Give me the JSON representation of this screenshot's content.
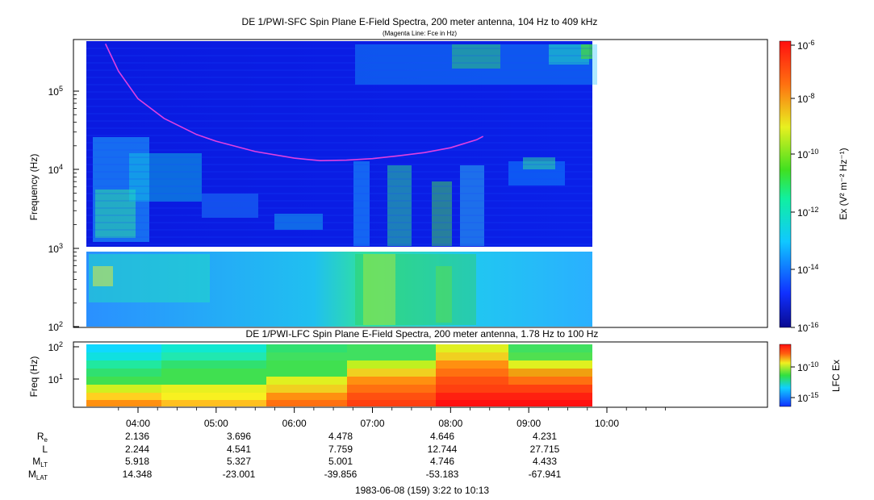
{
  "sfc_panel": {
    "title": "DE 1/PWI-SFC  Spin Plane E-Field Spectra, 200 meter antenna, 104 Hz to 409 kHz",
    "subtitle": "(Magenta Line: Fce in Hz)",
    "ylabel": "Frequency (Hz)",
    "colorbar_label": "Ex (V² m⁻² Hz⁻¹)",
    "colorbar_ticks": [
      {
        "base": "10",
        "exp": "-6"
      },
      {
        "base": "10",
        "exp": "-8"
      },
      {
        "base": "10",
        "exp": "-10"
      },
      {
        "base": "10",
        "exp": "-12"
      },
      {
        "base": "10",
        "exp": "-14"
      },
      {
        "base": "10",
        "exp": "-16"
      }
    ],
    "yticks": [
      {
        "base": "10",
        "exp": "5"
      },
      {
        "base": "10",
        "exp": "4"
      },
      {
        "base": "10",
        "exp": "3"
      },
      {
        "base": "10",
        "exp": "2"
      }
    ]
  },
  "lfc_panel": {
    "title": "DE 1/PWI-LFC  Spin Plane E-Field Spectra, 200 meter antenna, 1.78 Hz to 100 Hz",
    "ylabel": "Freq (Hz)",
    "colorbar_label": "LFC Ex",
    "colorbar_ticks": [
      {
        "base": "10",
        "exp": "-10"
      },
      {
        "base": "10",
        "exp": "-15"
      }
    ],
    "yticks": [
      {
        "base": "10",
        "exp": "2"
      },
      {
        "base": "10",
        "exp": "1"
      }
    ]
  },
  "time_axis": {
    "ticks": [
      "04:00",
      "05:00",
      "06:00",
      "07:00",
      "08:00",
      "09:00",
      "10:00"
    ]
  },
  "ephemeris": {
    "rows": [
      {
        "label": "R",
        "sub": "e",
        "values": [
          "2.136",
          "3.696",
          "4.478",
          "4.646",
          "4.231"
        ]
      },
      {
        "label": "L",
        "sub": "",
        "values": [
          "2.244",
          "4.541",
          "7.759",
          "12.744",
          "27.715"
        ]
      },
      {
        "label": "M",
        "sub": "LT",
        "values": [
          "5.918",
          "5.327",
          "5.001",
          "4.746",
          "4.433"
        ]
      },
      {
        "label": "M",
        "sub": "LAT",
        "values": [
          "14.348",
          "-23.001",
          "-39.856",
          "-53.183",
          "-67.941"
        ]
      }
    ]
  },
  "footer": "1983-06-08 (159) 3:22 to 10:13",
  "colors": {
    "fce_line": "#e040e0",
    "background_spectrum": "#0a1ae0"
  },
  "chart_data": [
    {
      "type": "heatmap",
      "title": "DE 1/PWI-SFC  Spin Plane E-Field Spectra, 200 meter antenna, 104 Hz to 409 kHz",
      "ylabel": "Frequency (Hz)",
      "yscale": "log",
      "ylim": [
        100,
        409000
      ],
      "xlim": [
        "03:22",
        "10:13"
      ],
      "data_extent": [
        "03:22",
        "08:27"
      ],
      "colorbar": {
        "label": "Ex (V^2 m^-2 Hz^-1)",
        "scale": "log",
        "range": [
          1e-16,
          1e-06
        ]
      },
      "series": [
        {
          "name": "Fce",
          "x": [
            "03:35",
            "03:45",
            "04:00",
            "04:20",
            "04:45",
            "05:00",
            "05:30",
            "06:00",
            "06:20",
            "06:40",
            "07:00",
            "07:20",
            "07:40",
            "08:00",
            "08:20",
            "08:25"
          ],
          "y": [
            400000,
            180000,
            80000,
            45000,
            28000,
            23000,
            17000,
            14000,
            13000,
            13200,
            13800,
            15000,
            16500,
            19000,
            24000,
            26500
          ]
        }
      ]
    },
    {
      "type": "heatmap",
      "title": "DE 1/PWI-LFC  Spin Plane E-Field Spectra, 200 meter antenna, 1.78 Hz to 100 Hz",
      "ylabel": "Freq (Hz)",
      "yscale": "log",
      "ylim": [
        1.78,
        100
      ],
      "xlim": [
        "03:22",
        "10:13"
      ],
      "data_extent": [
        "03:22",
        "08:27"
      ],
      "colorbar": {
        "label": "LFC Ex",
        "scale": "log"
      }
    }
  ]
}
